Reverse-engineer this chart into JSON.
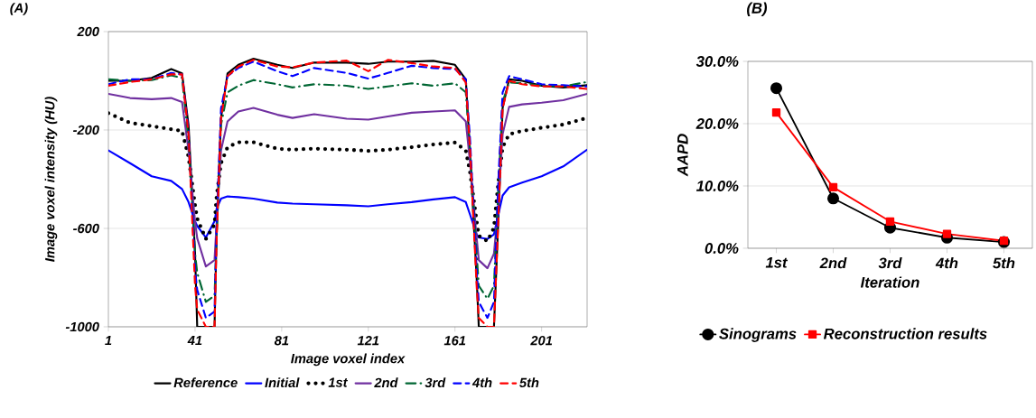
{
  "chart_data": [
    {
      "type": "line",
      "title": "(A)",
      "xlabel": "Image voxel index",
      "ylabel": "Image voxel intensity (HU)",
      "x": [
        1,
        11,
        21,
        30,
        35,
        38,
        41,
        42,
        46,
        50,
        51,
        53,
        56,
        61,
        68,
        79,
        86,
        96,
        111,
        121,
        130,
        141,
        151,
        161,
        166,
        168,
        171,
        172,
        176,
        179,
        181,
        183,
        186,
        192,
        201,
        211,
        222
      ],
      "xlim": [
        1,
        222
      ],
      "xticks": [
        1,
        41,
        81,
        121,
        161,
        201
      ],
      "ylim": [
        -1000,
        200
      ],
      "yticks": [
        -1000,
        -600,
        -200,
        200
      ],
      "grid": "y",
      "legend": "bottom",
      "series": [
        {
          "name": "Reference",
          "color": "#000000",
          "line_style": "solid",
          "values": [
            0,
            0,
            12,
            48,
            30,
            -180,
            -700,
            -1000,
            -1000,
            -1000,
            -600,
            -150,
            30,
            65,
            90,
            65,
            52,
            74,
            74,
            69,
            78,
            78,
            81,
            65,
            6,
            -300,
            -800,
            -1000,
            -1000,
            -1000,
            -570,
            -110,
            6,
            0,
            -20,
            -27,
            -18
          ]
        },
        {
          "name": "Initial",
          "color": "#0000ff",
          "line_style": "solid",
          "values": [
            -283,
            -335,
            -388,
            -407,
            -440,
            -493,
            -571,
            -590,
            -637,
            -571,
            -519,
            -479,
            -470,
            -473,
            -479,
            -495,
            -499,
            -502,
            -506,
            -510,
            -502,
            -493,
            -482,
            -473,
            -493,
            -545,
            -624,
            -637,
            -643,
            -624,
            -545,
            -466,
            -433,
            -414,
            -388,
            -348,
            -280
          ]
        },
        {
          "name": "1st",
          "color": "#000000",
          "line_style": "dotted",
          "values": [
            -132,
            -171,
            -184,
            -197,
            -204,
            -309,
            -506,
            -560,
            -643,
            -584,
            -466,
            -335,
            -270,
            -250,
            -250,
            -276,
            -280,
            -276,
            -280,
            -285,
            -280,
            -270,
            -259,
            -251,
            -283,
            -374,
            -571,
            -630,
            -652,
            -597,
            -414,
            -270,
            -217,
            -204,
            -191,
            -178,
            -151
          ]
        },
        {
          "name": "2nd",
          "color": "#7030a0",
          "line_style": "solid",
          "values": [
            -53,
            -70,
            -75,
            -70,
            -86,
            -283,
            -571,
            -640,
            -755,
            -729,
            -571,
            -283,
            -165,
            -125,
            -110,
            -138,
            -151,
            -136,
            -154,
            -158,
            -145,
            -130,
            -125,
            -120,
            -165,
            -335,
            -637,
            -729,
            -762,
            -703,
            -506,
            -217,
            -106,
            -96,
            -89,
            -79,
            -53
          ]
        },
        {
          "name": "3rd",
          "color": "#006633",
          "line_style": "dashdot",
          "values": [
            6,
            0,
            3,
            22,
            12,
            -243,
            -702,
            -780,
            -899,
            -873,
            -637,
            -178,
            -47,
            -20,
            3,
            -14,
            -27,
            -14,
            -20,
            -33,
            -23,
            -10,
            -20,
            -10,
            -47,
            -283,
            -702,
            -833,
            -886,
            -833,
            -440,
            -86,
            -7,
            -10,
            -20,
            -23,
            -5
          ]
        },
        {
          "name": "4th",
          "color": "#0000ff",
          "line_style": "dashed",
          "values": [
            -14,
            6,
            6,
            32,
            26,
            -204,
            -768,
            -850,
            -964,
            -938,
            -571,
            -112,
            19,
            52,
            78,
            39,
            19,
            52,
            32,
            9,
            32,
            61,
            52,
            48,
            6,
            -243,
            -768,
            -899,
            -964,
            -899,
            -414,
            -47,
            19,
            6,
            -14,
            -18,
            -23
          ]
        },
        {
          "name": "5th",
          "color": "#ff0000",
          "line_style": "dashed",
          "values": [
            -20,
            -5,
            6,
            26,
            26,
            -217,
            -833,
            -930,
            -1000,
            -1000,
            -637,
            -152,
            19,
            58,
            85,
            58,
            55,
            74,
            82,
            39,
            85,
            72,
            58,
            52,
            -7,
            -283,
            -833,
            -964,
            -1000,
            -1000,
            -571,
            -112,
            0,
            -14,
            -23,
            -23,
            -33
          ]
        }
      ]
    },
    {
      "type": "line",
      "title": "(B)",
      "xlabel": "Iteration",
      "ylabel": "AAPD",
      "categories": [
        "1st",
        "2nd",
        "3rd",
        "4th",
        "5th"
      ],
      "ylim": [
        0,
        30
      ],
      "yticks": [
        {
          "value": 0,
          "label": "0.0%"
        },
        {
          "value": 10,
          "label": "10.0%"
        },
        {
          "value": 20,
          "label": "20.0%"
        },
        {
          "value": 30,
          "label": "30.0%"
        }
      ],
      "grid": "y",
      "legend": "bottom",
      "series": [
        {
          "name": "Sinograms",
          "color": "#000000",
          "marker": "circle",
          "values": [
            25.7,
            8.0,
            3.3,
            1.7,
            1.0
          ]
        },
        {
          "name": "Reconstruction results",
          "color": "#ff0000",
          "marker": "square",
          "values": [
            21.8,
            9.8,
            4.3,
            2.3,
            1.2
          ]
        }
      ]
    }
  ]
}
